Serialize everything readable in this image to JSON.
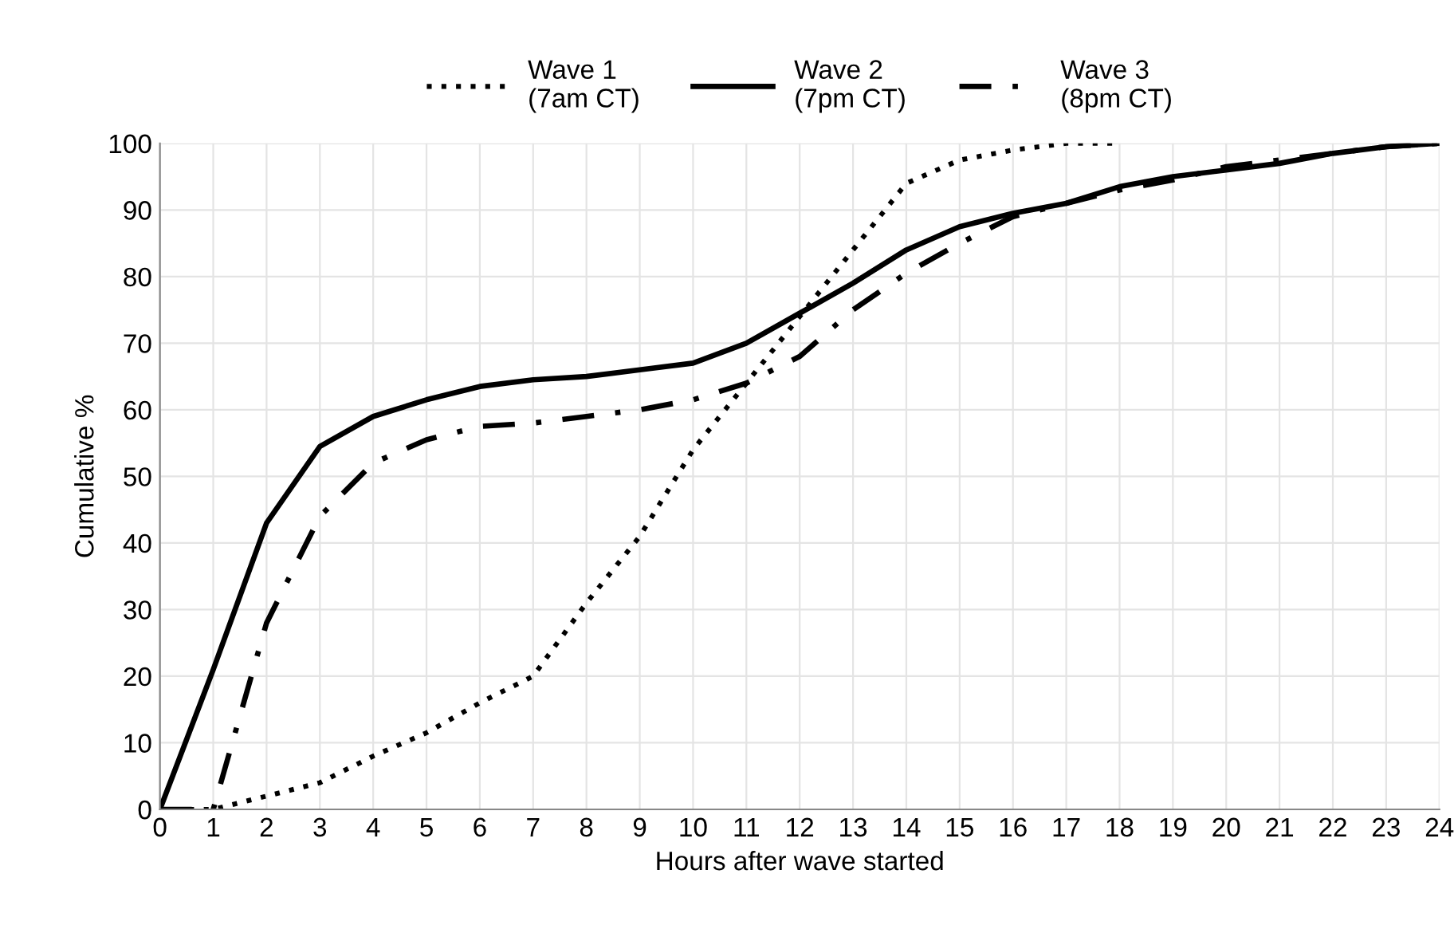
{
  "chart_data": {
    "type": "line",
    "xlabel": "Hours after wave started",
    "ylabel": "Cumulative %",
    "xlim": [
      0,
      24
    ],
    "xticks": [
      0,
      1,
      2,
      3,
      4,
      5,
      6,
      7,
      8,
      9,
      10,
      11,
      12,
      13,
      14,
      15,
      16,
      17,
      18,
      19,
      20,
      21,
      22,
      23,
      24
    ],
    "ylim": [
      0,
      100
    ],
    "yticks": [
      0,
      10,
      20,
      30,
      40,
      50,
      60,
      70,
      80,
      90,
      100
    ],
    "grid": true,
    "legend": "top",
    "marker": "none",
    "series": [
      {
        "name": "Wave 1\n(7am CT)",
        "color": "#000000",
        "line_style": "dotted",
        "x": [
          0,
          1,
          2,
          3,
          4,
          5,
          6,
          7,
          8,
          9,
          10,
          11,
          12,
          13,
          14,
          15,
          16,
          17,
          18
        ],
        "values": [
          0,
          0,
          2,
          4,
          8,
          11.5,
          16,
          20,
          31,
          41,
          54,
          64,
          74,
          84,
          94,
          97.5,
          99,
          100,
          100
        ]
      },
      {
        "name": "Wave 2\n(7pm CT)",
        "color": "#000000",
        "line_style": "solid",
        "x": [
          0,
          1,
          2,
          3,
          4,
          5,
          6,
          7,
          8,
          9,
          10,
          11,
          12,
          13,
          14,
          15,
          16,
          17,
          18,
          19,
          20,
          21,
          22,
          23,
          24
        ],
        "values": [
          0,
          21,
          43,
          54.5,
          59,
          61.5,
          63.5,
          64.5,
          65,
          66,
          67,
          70,
          74.5,
          79,
          84,
          87.5,
          89.5,
          91,
          93.5,
          95,
          96,
          97,
          98.5,
          99.5,
          100
        ]
      },
      {
        "name": "Wave 3\n(8pm CT)",
        "color": "#000000",
        "line_style": "dashed",
        "x": [
          0,
          1,
          2,
          3,
          4,
          5,
          6,
          7,
          8,
          9,
          10,
          11,
          12,
          13,
          14,
          15,
          16,
          17,
          18,
          19,
          20,
          21,
          22,
          23,
          24
        ],
        "values": [
          0,
          0,
          28,
          44,
          52,
          55.5,
          57.5,
          58,
          59,
          60,
          61.5,
          64,
          68,
          75,
          80.5,
          85,
          89,
          91,
          93,
          94.5,
          96.5,
          97.5,
          98.5,
          99.5,
          100
        ]
      }
    ]
  }
}
